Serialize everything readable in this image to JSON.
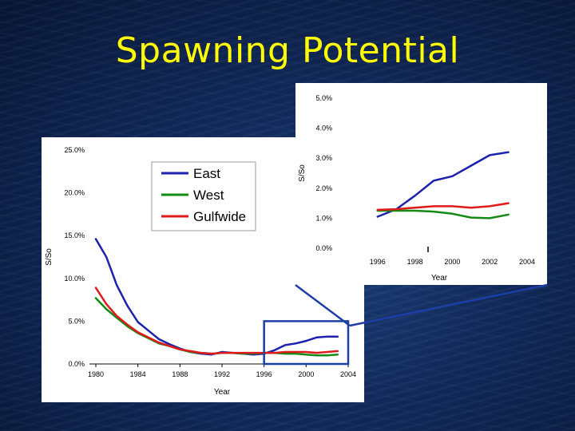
{
  "slide": {
    "title": "Spawning Potential"
  },
  "chart_data": [
    {
      "type": "line",
      "title": "",
      "xlabel": "Year",
      "ylabel": "S/So",
      "xlim": [
        1980,
        2004
      ],
      "ylim": [
        0.0,
        25.0
      ],
      "xticks": [
        1980,
        1984,
        1988,
        1992,
        1996,
        2000,
        2004
      ],
      "yticks": [
        0.0,
        5.0,
        10.0,
        15.0,
        20.0,
        25.0
      ],
      "y_unit": "%",
      "legend_position": "top-center",
      "highlight_box": {
        "x_range": [
          1996,
          2004
        ],
        "y_range": [
          0.0,
          5.0
        ]
      },
      "series": [
        {
          "name": "East",
          "color": "#1b22b0",
          "x": [
            1980,
            1981,
            1982,
            1983,
            1984,
            1985,
            1986,
            1987,
            1988,
            1989,
            1990,
            1991,
            1992,
            1993,
            1994,
            1995,
            1996,
            1997,
            1998,
            1999,
            2000,
            2001,
            2002,
            2003
          ],
          "values": [
            14.6,
            12.5,
            9.2,
            6.8,
            4.9,
            3.9,
            2.9,
            2.3,
            1.8,
            1.4,
            1.2,
            1.1,
            1.4,
            1.3,
            1.2,
            1.1,
            1.2,
            1.6,
            2.2,
            2.4,
            2.7,
            3.1,
            3.2,
            3.2
          ]
        },
        {
          "name": "West",
          "color": "#138a13",
          "x": [
            1980,
            1981,
            1982,
            1983,
            1984,
            1985,
            1986,
            1987,
            1988,
            1989,
            1990,
            1991,
            1992,
            1993,
            1994,
            1995,
            1996,
            1997,
            1998,
            1999,
            2000,
            2001,
            2002,
            2003
          ],
          "values": [
            7.7,
            6.4,
            5.4,
            4.4,
            3.6,
            3.0,
            2.4,
            2.1,
            1.7,
            1.4,
            1.3,
            1.2,
            1.3,
            1.3,
            1.2,
            1.2,
            1.3,
            1.3,
            1.2,
            1.2,
            1.1,
            1.0,
            1.0,
            1.1
          ]
        },
        {
          "name": "Gulfwide",
          "color": "#e01a1a",
          "x": [
            1980,
            1981,
            1982,
            1983,
            1984,
            1985,
            1986,
            1987,
            1988,
            1989,
            1990,
            1991,
            1992,
            1993,
            1994,
            1995,
            1996,
            1997,
            1998,
            1999,
            2000,
            2001,
            2002,
            2003
          ],
          "values": [
            8.9,
            7.0,
            5.6,
            4.6,
            3.7,
            3.1,
            2.5,
            2.1,
            1.7,
            1.5,
            1.3,
            1.2,
            1.3,
            1.3,
            1.3,
            1.3,
            1.3,
            1.3,
            1.4,
            1.4,
            1.4,
            1.3,
            1.4,
            1.5
          ]
        }
      ]
    },
    {
      "type": "line",
      "title": "",
      "xlabel": "Year",
      "ylabel": "S/So",
      "xlim": [
        1994,
        2004
      ],
      "ylim": [
        0.0,
        5.0
      ],
      "xticks": [
        1996,
        1998,
        2000,
        2002,
        2004
      ],
      "yticks": [
        0.0,
        1.0,
        2.0,
        3.0,
        4.0,
        5.0
      ],
      "y_unit": "%",
      "series": [
        {
          "name": "East",
          "color": "#1b22b0",
          "x": [
            1996,
            1997,
            1998,
            1999,
            2000,
            2001,
            2002,
            2003
          ],
          "values": [
            1.05,
            1.3,
            1.75,
            2.25,
            2.4,
            2.75,
            3.1,
            3.2
          ]
        },
        {
          "name": "West",
          "color": "#138a13",
          "x": [
            1996,
            1997,
            1998,
            1999,
            2000,
            2001,
            2002,
            2003
          ],
          "values": [
            1.25,
            1.25,
            1.25,
            1.22,
            1.15,
            1.02,
            1.0,
            1.12
          ]
        },
        {
          "name": "Gulfwide",
          "color": "#e01a1a",
          "x": [
            1996,
            1997,
            1998,
            1999,
            2000,
            2001,
            2002,
            2003
          ],
          "values": [
            1.28,
            1.3,
            1.35,
            1.4,
            1.4,
            1.35,
            1.4,
            1.5
          ]
        }
      ]
    }
  ]
}
